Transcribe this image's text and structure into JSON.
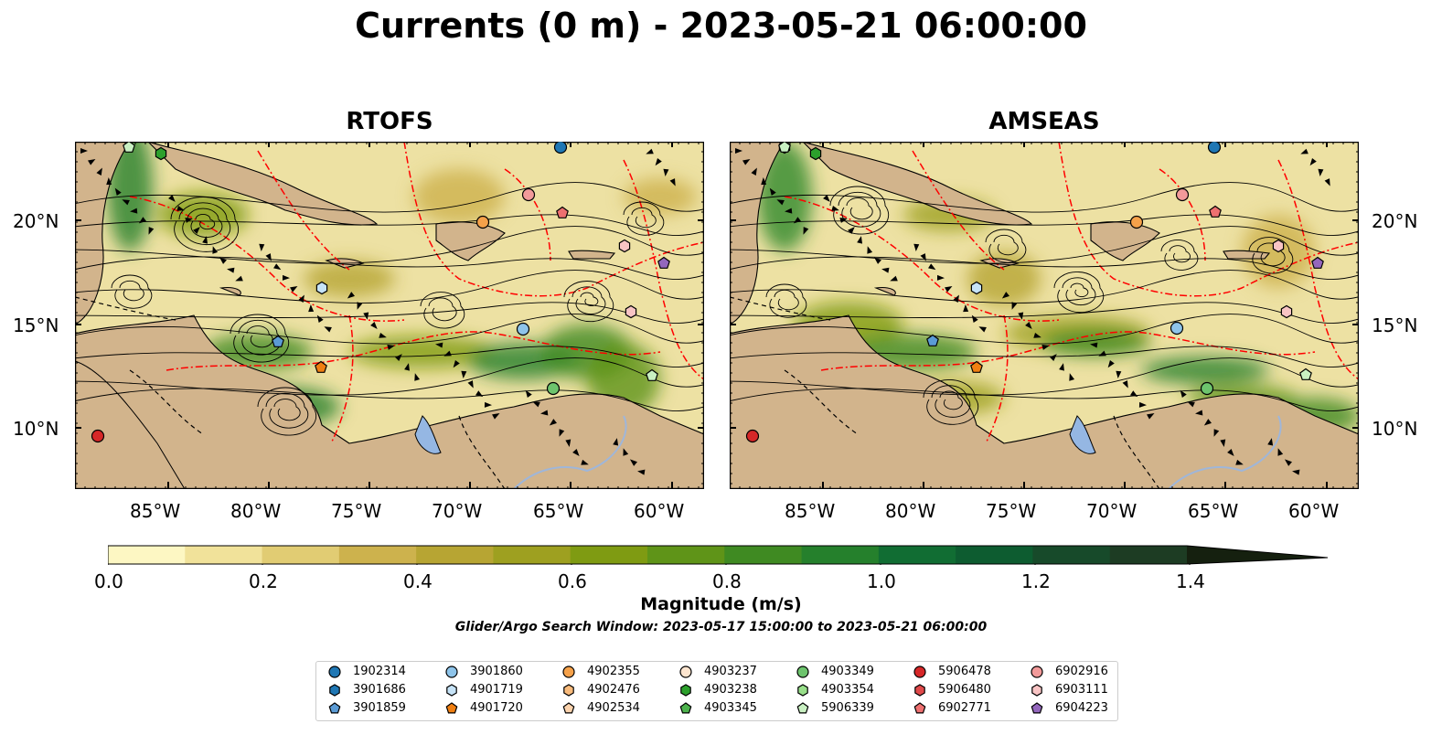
{
  "title": "Currents (0 m) - 2023-05-21 06:00:00",
  "panels": [
    {
      "title": "RTOFS"
    },
    {
      "title": "AMSEAS"
    }
  ],
  "lon_ticks": [
    "85°W",
    "80°W",
    "75°W",
    "70°W",
    "65°W",
    "60°W"
  ],
  "lat_ticks": [
    "20°N",
    "15°N",
    "10°N"
  ],
  "colorbar": {
    "ticks": [
      "0.0",
      "0.2",
      "0.4",
      "0.6",
      "0.8",
      "1.0",
      "1.2",
      "1.4"
    ],
    "label": "Magnitude (m/s)",
    "colors": [
      "#fdf7c3",
      "#f1e29a",
      "#e1cc73",
      "#cdb24d",
      "#b7a533",
      "#9ea020",
      "#7f9b12",
      "#5f9418",
      "#3f8a22",
      "#25802c",
      "#116d33",
      "#0d5c30",
      "#174a2a",
      "#1d3c23",
      "#1c2a18",
      "#15200f"
    ]
  },
  "search_window": "Glider/Argo Search Window: 2023-05-17 15:00:00 to 2023-05-21 06:00:00",
  "legend": [
    {
      "id": "1902314",
      "color": "#1f77b4",
      "shape": "circle"
    },
    {
      "id": "3901686",
      "color": "#1f77b4",
      "shape": "hexagon"
    },
    {
      "id": "3901859",
      "color": "#5b9bd5",
      "shape": "pentagon"
    },
    {
      "id": "3901860",
      "color": "#8ec4ea",
      "shape": "circle"
    },
    {
      "id": "4901719",
      "color": "#c6e3f7",
      "shape": "hexagon"
    },
    {
      "id": "4901720",
      "color": "#f07f12",
      "shape": "pentagon"
    },
    {
      "id": "4902355",
      "color": "#f5a14a",
      "shape": "circle"
    },
    {
      "id": "4902476",
      "color": "#f9bb7c",
      "shape": "hexagon"
    },
    {
      "id": "4902534",
      "color": "#fcd3ad",
      "shape": "pentagon"
    },
    {
      "id": "4903237",
      "color": "#fde5cf",
      "shape": "circle"
    },
    {
      "id": "4903238",
      "color": "#2ca02c",
      "shape": "hexagon"
    },
    {
      "id": "4903345",
      "color": "#4db34d",
      "shape": "pentagon"
    },
    {
      "id": "4903349",
      "color": "#6dc46d",
      "shape": "circle"
    },
    {
      "id": "4903354",
      "color": "#98df8a",
      "shape": "hexagon"
    },
    {
      "id": "5906339",
      "color": "#c9f0c2",
      "shape": "pentagon"
    },
    {
      "id": "5906478",
      "color": "#d62728",
      "shape": "circle"
    },
    {
      "id": "5906480",
      "color": "#e0494a",
      "shape": "hexagon"
    },
    {
      "id": "6902771",
      "color": "#ee7070",
      "shape": "pentagon"
    },
    {
      "id": "6902916",
      "color": "#f29a9a",
      "shape": "circle"
    },
    {
      "id": "6903111",
      "color": "#f8c4c4",
      "shape": "hexagon"
    },
    {
      "id": "6904223",
      "color": "#9467bd",
      "shape": "pentagon"
    }
  ],
  "colors": {
    "land": "#d2b48c",
    "ocean_outside": "#95b7e3",
    "eez_line": "#ff0000",
    "border_line": "#000000",
    "river": "#9fb6d9"
  }
}
